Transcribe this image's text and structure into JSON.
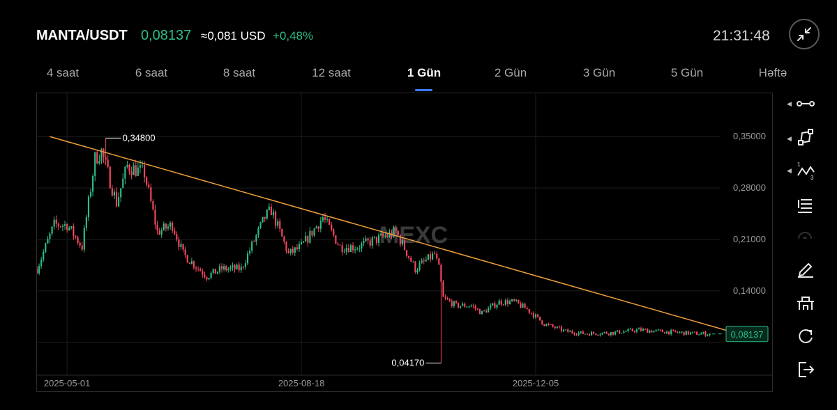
{
  "header": {
    "pair": "MANTA/USDT",
    "price": "0,08137",
    "usd_price": "≈0,081 USD",
    "change": "+0,48%",
    "time": "21:31:48"
  },
  "tabs": [
    {
      "label": "4 saat",
      "active": false
    },
    {
      "label": "6 saat",
      "active": false
    },
    {
      "label": "8 saat",
      "active": false
    },
    {
      "label": "12 saat",
      "active": false
    },
    {
      "label": "1 Gün",
      "active": true
    },
    {
      "label": "2 Gün",
      "active": false
    },
    {
      "label": "3 Gün",
      "active": false
    },
    {
      "label": "5 Gün",
      "active": false
    },
    {
      "label": "Həftə",
      "active": false
    }
  ],
  "chart_data": {
    "type": "candlestick",
    "watermark": "MEXC",
    "y_ticks": [
      "0,35000",
      "0,28000",
      "0,21000",
      "0,14000"
    ],
    "y_tick_values": [
      0.35,
      0.28,
      0.21,
      0.14
    ],
    "x_ticks": [
      "2025-05-01",
      "2025-08-18",
      "2025-12-05"
    ],
    "x_tick_dates": [
      "2025-05-01",
      "2025-08-18",
      "2025-12-05"
    ],
    "high_annotation": {
      "label": "0,34800",
      "value": 0.348
    },
    "low_annotation": {
      "label": "0,04170",
      "value": 0.0417
    },
    "last_price": {
      "label": "0,08137",
      "value": 0.08137
    },
    "trendline": {
      "start": [
        "2025-04-23",
        0.35
      ],
      "end": [
        "2026-03-10",
        0.081
      ]
    },
    "ylim": [
      0.03,
      0.39
    ],
    "xlim": [
      "2025-04-17",
      "2026-03-25"
    ],
    "up_color": "#2ebd85",
    "down_color": "#f6465d",
    "trendline_color": "#f0a03c",
    "close_path": [
      [
        "2025-04-17",
        0.17
      ],
      [
        "2025-04-25",
        0.23
      ],
      [
        "2025-05-01",
        0.23
      ],
      [
        "2025-05-08",
        0.2
      ],
      [
        "2025-05-14",
        0.32
      ],
      [
        "2025-05-17",
        0.33
      ],
      [
        "2025-05-24",
        0.26
      ],
      [
        "2025-05-29",
        0.31
      ],
      [
        "2025-06-06",
        0.3
      ],
      [
        "2025-06-12",
        0.22
      ],
      [
        "2025-06-19",
        0.23
      ],
      [
        "2025-06-24",
        0.19
      ],
      [
        "2025-07-05",
        0.16
      ],
      [
        "2025-07-12",
        0.17
      ],
      [
        "2025-07-21",
        0.17
      ],
      [
        "2025-08-01",
        0.24
      ],
      [
        "2025-08-04",
        0.25
      ],
      [
        "2025-08-12",
        0.19
      ],
      [
        "2025-08-18",
        0.2
      ],
      [
        "2025-08-28",
        0.24
      ],
      [
        "2025-09-05",
        0.2
      ],
      [
        "2025-09-13",
        0.2
      ],
      [
        "2025-09-22",
        0.21
      ],
      [
        "2025-10-01",
        0.22
      ],
      [
        "2025-10-10",
        0.17
      ],
      [
        "2025-10-19",
        0.19
      ],
      [
        "2025-10-21",
        0.17
      ],
      [
        "2025-10-23",
        0.13
      ],
      [
        "2025-10-29",
        0.12
      ],
      [
        "2025-11-05",
        0.12
      ],
      [
        "2025-11-10",
        0.11
      ],
      [
        "2025-11-18",
        0.125
      ],
      [
        "2025-11-25",
        0.125
      ],
      [
        "2025-12-01",
        0.115
      ],
      [
        "2025-12-09",
        0.095
      ],
      [
        "2025-12-19",
        0.085
      ],
      [
        "2025-12-27",
        0.082
      ],
      [
        "2026-01-10",
        0.083
      ],
      [
        "2026-01-22",
        0.087
      ],
      [
        "2026-02-05",
        0.084
      ],
      [
        "2026-02-17",
        0.082
      ],
      [
        "2026-02-24",
        0.08137
      ]
    ]
  },
  "tools": [
    {
      "icon": "horizontal-line-tool-icon",
      "has_arrow": true
    },
    {
      "icon": "shape-tool-icon",
      "has_arrow": true
    },
    {
      "icon": "pattern-tool-icon",
      "has_arrow": true
    },
    {
      "icon": "fibonacci-tool-icon",
      "has_arrow": false
    },
    {
      "icon": "eye-icon",
      "has_arrow": false
    },
    {
      "icon": "pencil-ruler-icon",
      "has_arrow": false
    },
    {
      "icon": "magnet-tool-icon",
      "has_arrow": false
    },
    {
      "icon": "refresh-icon",
      "has_arrow": false
    },
    {
      "icon": "exit-icon",
      "has_arrow": false
    }
  ]
}
